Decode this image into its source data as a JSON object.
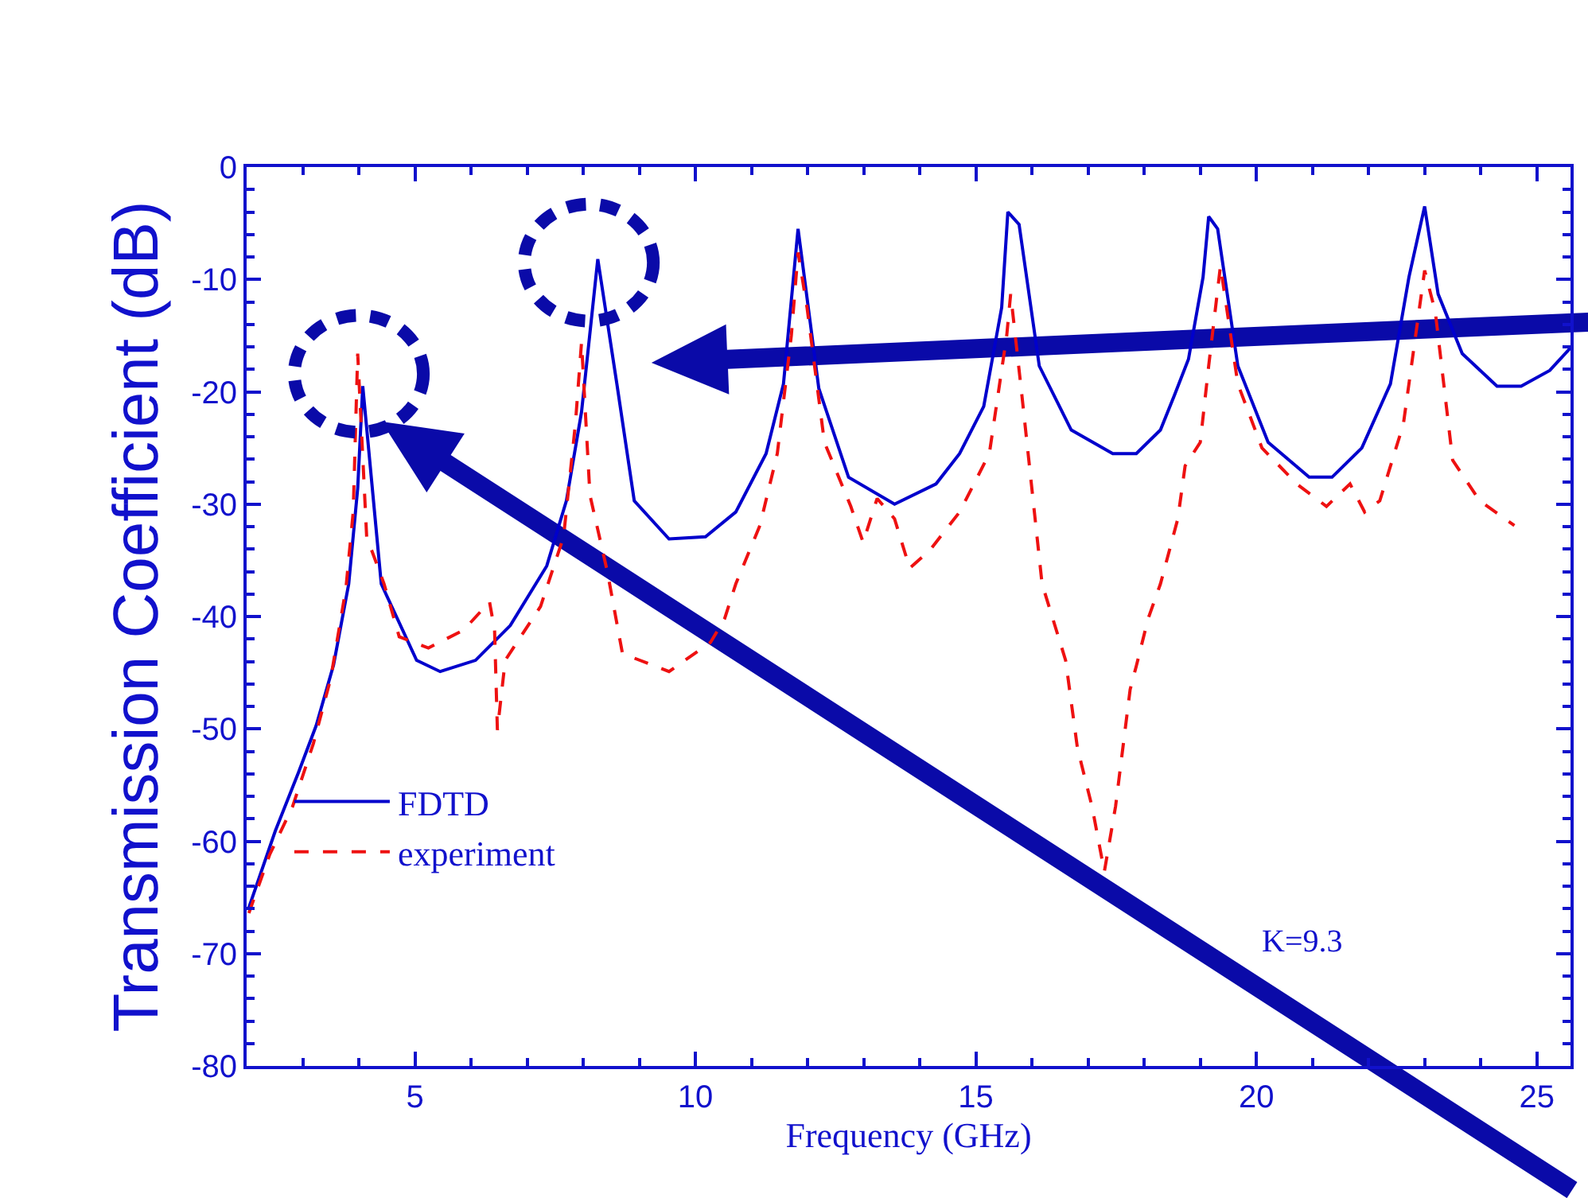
{
  "chart_data": {
    "type": "line",
    "xlabel": "Frequency (GHz)",
    "ylabel": "Transmission Coefficient (dB)",
    "xlim": [
      2,
      25.6
    ],
    "xticks": [
      5,
      10,
      15,
      20,
      25
    ],
    "ylim": [
      -80,
      0
    ],
    "yticks": [
      0,
      -10,
      -20,
      -30,
      -40,
      -50,
      -60,
      -70,
      -80
    ],
    "grid": false,
    "legend": "bottom left",
    "marker": "none",
    "annotations": [
      "K=9.3"
    ],
    "series": [
      {
        "name": "FDTD",
        "color": "#0000cc",
        "line_style": "solid",
        "x": [
          2.04,
          2.51,
          2.93,
          3.24,
          3.55,
          3.82,
          3.98,
          4.07,
          4.4,
          5.03,
          5.45,
          6.08,
          6.7,
          7.35,
          7.7,
          7.97,
          8.26,
          8.6,
          8.91,
          9.53,
          10.18,
          10.72,
          11.26,
          11.57,
          11.83,
          12.2,
          12.73,
          13.55,
          14.29,
          14.71,
          15.14,
          15.46,
          15.57,
          15.77,
          16.13,
          16.7,
          17.44,
          17.86,
          18.29,
          18.54,
          18.79,
          19.05,
          19.15,
          19.31,
          19.67,
          20.21,
          20.94,
          21.35,
          21.88,
          22.39,
          22.72,
          23.0,
          23.24,
          23.67,
          24.29,
          24.72,
          25.23,
          25.6
        ],
        "values": [
          -65.9,
          -59.1,
          -53.8,
          -49.7,
          -44.3,
          -37.1,
          -28.6,
          -19.5,
          -37.1,
          -43.9,
          -44.9,
          -43.9,
          -40.8,
          -35.5,
          -29.7,
          -21.8,
          -8.2,
          -19.3,
          -29.7,
          -33.1,
          -32.9,
          -30.7,
          -25.5,
          -19.3,
          -5.5,
          -19.7,
          -27.6,
          -30.0,
          -28.2,
          -25.5,
          -21.3,
          -12.5,
          -4.0,
          -5.1,
          -17.7,
          -23.4,
          -25.5,
          -25.5,
          -23.4,
          -20.3,
          -17.1,
          -9.8,
          -4.4,
          -5.5,
          -17.7,
          -24.5,
          -27.6,
          -27.6,
          -25.0,
          -19.3,
          -9.8,
          -3.5,
          -11.3,
          -16.6,
          -19.5,
          -19.5,
          -18.1,
          -16.1
        ]
      },
      {
        "name": "experiment",
        "color": "#ee1111",
        "line_style": "dashed",
        "x": [
          2.04,
          2.41,
          2.82,
          3.19,
          3.5,
          3.77,
          3.9,
          3.98,
          4.14,
          4.45,
          4.72,
          5.24,
          5.87,
          6.33,
          6.42,
          6.47,
          6.61,
          7.24,
          7.65,
          7.86,
          7.97,
          8.12,
          8.43,
          8.7,
          9.53,
          10.27,
          10.52,
          10.72,
          11.15,
          11.46,
          11.71,
          11.83,
          11.99,
          12.3,
          12.77,
          12.99,
          13.24,
          13.55,
          13.82,
          14.18,
          14.71,
          15.24,
          15.55,
          15.62,
          15.82,
          16.18,
          16.6,
          16.81,
          17.07,
          17.29,
          17.49,
          17.75,
          17.86,
          18.07,
          18.29,
          18.6,
          18.73,
          19.0,
          19.15,
          19.36,
          19.67,
          20.1,
          20.72,
          21.25,
          21.67,
          21.93,
          22.2,
          22.62,
          23.0,
          23.19,
          23.5,
          23.98,
          24.6
        ],
        "values": [
          -66.4,
          -61.2,
          -56.9,
          -51.3,
          -45.5,
          -37.5,
          -30.7,
          -16.6,
          -32.9,
          -37.1,
          -41.8,
          -42.8,
          -41.2,
          -38.7,
          -41.2,
          -50.1,
          -43.9,
          -39.1,
          -32.9,
          -22.9,
          -15.6,
          -29.2,
          -36.0,
          -43.3,
          -44.9,
          -42.3,
          -40.2,
          -37.1,
          -31.9,
          -25.5,
          -15.0,
          -7.6,
          -12.5,
          -24.5,
          -30.2,
          -33.4,
          -29.5,
          -31.3,
          -35.7,
          -34.1,
          -30.7,
          -25.5,
          -15.0,
          -11.3,
          -20.3,
          -37.1,
          -43.9,
          -51.7,
          -56.9,
          -62.7,
          -56.9,
          -46.5,
          -44.4,
          -40.2,
          -37.1,
          -31.3,
          -26.6,
          -24.5,
          -17.7,
          -8.8,
          -19.3,
          -25.0,
          -28.2,
          -30.2,
          -28.2,
          -30.7,
          -29.7,
          -22.9,
          -9.2,
          -12.9,
          -26.1,
          -29.7,
          -31.9
        ]
      }
    ]
  }
}
